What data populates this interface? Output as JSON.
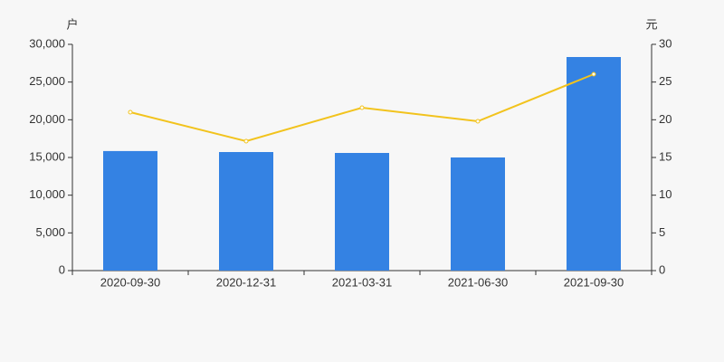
{
  "chart_data": {
    "type": "bar",
    "categories": [
      "2020-09-30",
      "2020-12-31",
      "2021-03-31",
      "2021-06-30",
      "2021-09-30"
    ],
    "y_label": "户",
    "y2_label": "元",
    "series": [
      {
        "type": "bar",
        "color": "#3482e3",
        "values": [
          15850,
          15720,
          15600,
          15000,
          28320
        ]
      },
      {
        "type": "line",
        "axis": "y2",
        "color": "#f2c31d",
        "values": [
          21.0,
          17.16,
          21.6,
          19.8,
          26.04
        ]
      }
    ],
    "ylim": [
      0,
      30000
    ],
    "yticks": [
      0,
      {
        "value": 5000,
        "label": "5,000"
      },
      {
        "value": 10000,
        "label": "10,000"
      },
      {
        "value": 15000,
        "label": "15,000"
      },
      {
        "value": 20000,
        "label": "20,000"
      },
      {
        "value": 25000,
        "label": "25,000"
      },
      {
        "value": 30000,
        "label": "30,000"
      }
    ],
    "y2lim": [
      0,
      30
    ],
    "y2ticks": [
      0,
      5,
      10,
      15,
      20,
      25,
      30
    ]
  }
}
